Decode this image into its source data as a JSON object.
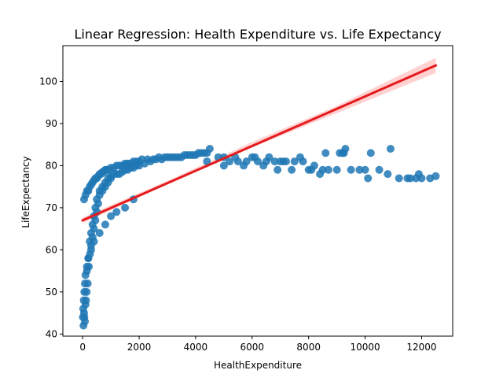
{
  "chart_data": {
    "type": "scatter",
    "title": "Linear Regression: Health Expenditure vs. Life Expectancy",
    "xlabel": "HealthExpenditure",
    "ylabel": "LifeExpectancy",
    "xlim": [
      -700,
      13100
    ],
    "ylim": [
      39.5,
      108.5
    ],
    "x_ticks": [
      0,
      2000,
      4000,
      6000,
      8000,
      10000,
      12000
    ],
    "y_ticks": [
      40,
      50,
      60,
      70,
      80,
      90,
      100
    ],
    "grid": false,
    "legend": "none",
    "colors": {
      "points": "#1f77b4",
      "regression_line": "#e41a1c",
      "confidence_band": "#ffb3b3"
    },
    "series": [
      {
        "kind": "points",
        "x": [
          50,
          80,
          120,
          150,
          200,
          250,
          300,
          350,
          400,
          450,
          500,
          600,
          700,
          800,
          900,
          1000,
          1200,
          1400,
          1600,
          1800,
          2000,
          2200,
          2400,
          2600,
          2800,
          3000,
          3200,
          3400,
          3600,
          3800,
          4000,
          4200,
          4400,
          4500,
          4800,
          5000,
          5200,
          5500,
          5800,
          6000,
          6200,
          6500,
          6800,
          7000,
          7200,
          7500,
          7800,
          8000,
          8200,
          8500,
          8700,
          9000,
          9200,
          9300,
          9500,
          9800,
          10000,
          10200,
          10500,
          10900,
          11200,
          11500,
          11800,
          12000,
          12500,
          30,
          60,
          100,
          140,
          180,
          220,
          260,
          300,
          350,
          400,
          450,
          500,
          550,
          600,
          700,
          800,
          900,
          1000,
          1100,
          1300,
          1500,
          1700,
          1900,
          1800,
          1500,
          1200,
          1000,
          800,
          600,
          400,
          300,
          200,
          150,
          100,
          80,
          60,
          40,
          20,
          10,
          50,
          100,
          150,
          200,
          250,
          300,
          350,
          400,
          450,
          500,
          550,
          600,
          650,
          700,
          750,
          800,
          850,
          900,
          1000,
          1100,
          1200,
          1300,
          1400,
          1500,
          1600,
          1700,
          1800,
          1900,
          2000,
          2100,
          2300,
          2500,
          2700,
          2900,
          3100,
          3300,
          3500,
          3700,
          3900,
          4100,
          4300,
          4400,
          5000,
          5400,
          5700,
          6100,
          6400,
          6600,
          6900,
          7100,
          7400,
          7700,
          8100,
          8400,
          8600,
          9100,
          9250,
          10100,
          10800,
          11600,
          11900,
          12300
        ],
        "y": [
          45,
          43,
          48,
          55,
          58,
          62,
          64,
          66,
          68,
          70,
          72,
          74,
          75,
          76,
          77,
          77.5,
          78,
          78.5,
          79,
          79.5,
          80,
          80.5,
          81,
          81.5,
          81.5,
          82,
          82,
          82,
          82.5,
          82.5,
          82.5,
          83,
          83,
          84,
          82,
          82,
          81,
          81,
          81,
          82,
          81,
          81,
          81,
          81,
          81,
          81,
          81,
          79,
          80,
          79,
          79,
          79,
          83,
          84,
          79,
          79,
          79,
          83,
          79,
          84,
          77,
          77,
          77,
          77,
          77.5,
          42,
          44,
          47,
          50,
          52,
          56,
          59,
          61,
          63,
          65,
          67,
          69,
          71,
          73,
          74,
          75,
          76,
          77,
          78,
          78,
          79,
          79.5,
          80,
          72,
          70,
          69,
          68,
          66,
          64,
          62,
          60,
          58,
          56,
          54,
          52,
          50,
          48,
          46,
          44,
          72,
          73,
          74,
          74,
          75,
          75.5,
          76,
          76.5,
          77,
          77,
          77.5,
          78,
          78,
          78.5,
          78.5,
          79,
          79,
          79,
          79.5,
          79.5,
          80,
          80,
          80,
          80.5,
          80.5,
          80.5,
          81,
          81,
          81,
          81.5,
          81.5,
          81.5,
          82,
          82,
          82,
          82,
          82,
          82.5,
          82.5,
          83,
          83,
          81,
          80,
          82,
          80,
          82,
          80,
          82,
          79,
          81,
          79,
          82,
          79,
          78,
          83,
          83,
          83,
          77,
          78,
          77,
          78,
          77
        ]
      },
      {
        "kind": "regression_line",
        "x": [
          0,
          12500
        ],
        "y": [
          67,
          103.8
        ]
      },
      {
        "kind": "confidence_band",
        "x": [
          0,
          3000,
          6000,
          9000,
          12500
        ],
        "y_low": [
          66.3,
          75.6,
          84.3,
          92.5,
          102.0
        ],
        "y_high": [
          67.7,
          76.4,
          85.6,
          94.2,
          105.6
        ]
      }
    ]
  }
}
